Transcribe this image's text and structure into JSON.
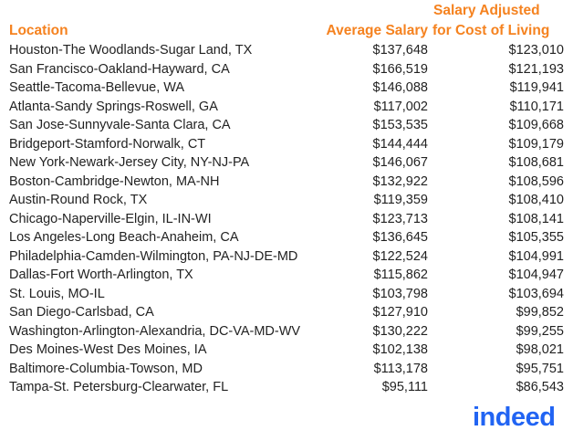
{
  "header": {
    "location_label": "Location",
    "average_label": "Average Salary",
    "adjusted_label_line1": "Salary Adjusted",
    "adjusted_label_line2": "for Cost of Living"
  },
  "rows": [
    {
      "location": "Houston-The Woodlands-Sugar Land, TX",
      "average": "$137,648",
      "adjusted": "$123,010"
    },
    {
      "location": "San Francisco-Oakland-Hayward, CA",
      "average": "$166,519",
      "adjusted": "$121,193"
    },
    {
      "location": "Seattle-Tacoma-Bellevue, WA",
      "average": "$146,088",
      "adjusted": "$119,941"
    },
    {
      "location": "Atlanta-Sandy Springs-Roswell, GA",
      "average": "$117,002",
      "adjusted": "$110,171"
    },
    {
      "location": "San Jose-Sunnyvale-Santa Clara, CA",
      "average": "$153,535",
      "adjusted": "$109,668"
    },
    {
      "location": "Bridgeport-Stamford-Norwalk, CT",
      "average": "$144,444",
      "adjusted": "$109,179"
    },
    {
      "location": "New York-Newark-Jersey City, NY-NJ-PA",
      "average": "$146,067",
      "adjusted": "$108,681"
    },
    {
      "location": "Boston-Cambridge-Newton, MA-NH",
      "average": "$132,922",
      "adjusted": "$108,596"
    },
    {
      "location": "Austin-Round Rock, TX",
      "average": "$119,359",
      "adjusted": "$108,410"
    },
    {
      "location": "Chicago-Naperville-Elgin, IL-IN-WI",
      "average": "$123,713",
      "adjusted": "$108,141"
    },
    {
      "location": "Los Angeles-Long Beach-Anaheim, CA",
      "average": "$136,645",
      "adjusted": "$105,355"
    },
    {
      "location": "Philadelphia-Camden-Wilmington, PA-NJ-DE-MD",
      "average": "$122,524",
      "adjusted": "$104,991"
    },
    {
      "location": "Dallas-Fort Worth-Arlington, TX",
      "average": "$115,862",
      "adjusted": "$104,947"
    },
    {
      "location": "St. Louis, MO-IL",
      "average": "$103,798",
      "adjusted": "$103,694"
    },
    {
      "location": "San Diego-Carlsbad, CA",
      "average": "$127,910",
      "adjusted": "$99,852"
    },
    {
      "location": "Washington-Arlington-Alexandria, DC-VA-MD-WV",
      "average": "$130,222",
      "adjusted": "$99,255"
    },
    {
      "location": "Des Moines-West Des Moines, IA",
      "average": "$102,138",
      "adjusted": "$98,021"
    },
    {
      "location": "Baltimore-Columbia-Towson, MD",
      "average": "$113,178",
      "adjusted": "$95,751"
    },
    {
      "location": "Tampa-St. Petersburg-Clearwater, FL",
      "average": "$95,111",
      "adjusted": "$86,543"
    }
  ],
  "logo": {
    "text": "indeed"
  },
  "colors": {
    "header_accent": "#f5821f",
    "text": "#222222",
    "logo": "#2164f3"
  }
}
